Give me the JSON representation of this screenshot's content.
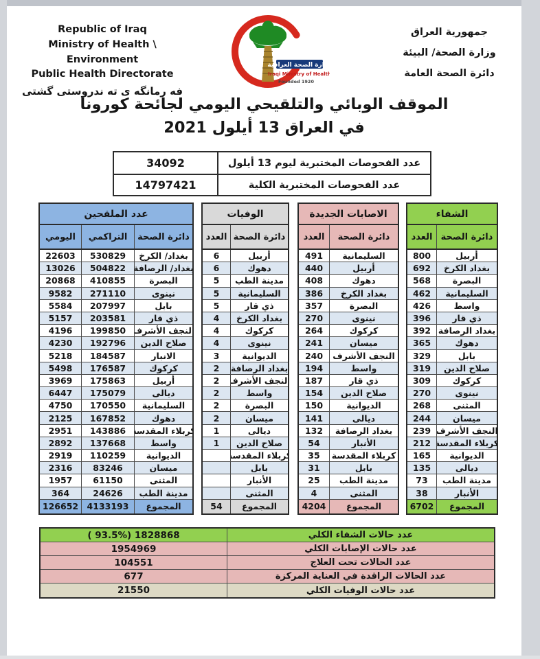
{
  "colors": {
    "blue": "#8DB4E2",
    "gray": "#D9D9D9",
    "pink": "#E6B8B7",
    "green": "#92D050",
    "stripe": "#DCE6F1",
    "beige": "#DDD9C4",
    "border": "#2b2b2b",
    "crescent_red": "#D6291E",
    "palm_green": "#1F8A24"
  },
  "header": {
    "english_lines": [
      "Republic of Iraq",
      "Ministry of Health \\ Environment",
      "Public Health Directorate"
    ],
    "kurdish_line": "فه رمانگه ی ته ندروستی گشتی",
    "arabic_lines": [
      "جمهورية العراق",
      "وزارة الصحة/ البيئة",
      "دائرة الصحة العامة"
    ],
    "logo": {
      "band_text": "وزارة الصحة العراقية",
      "sub_text": "Iraqi Ministry of Health",
      "founded_text": "Founded 1920"
    }
  },
  "title": {
    "line1": "الموقف الوبائي والتلقيحي اليومي لجائحة كورونا",
    "line2": "في العراق  13  أيلول 2021"
  },
  "tests": {
    "rows": [
      {
        "label": "عدد الفحوصات المختبرية  ليوم 13 أيلول",
        "value": "34092"
      },
      {
        "label": "عدد الفحوصات المختبرية الكلية",
        "value": "14797421"
      }
    ]
  },
  "main_tables": [
    {
      "id": "vaccinated",
      "title": "عدد الملقحين",
      "header_bg": "#8DB4E2",
      "headers": [
        "اليومي",
        "التراكمي",
        "دائرة الصحة"
      ],
      "rows": [
        [
          "22603",
          "530829",
          "بغداد/ الكرخ"
        ],
        [
          "13026",
          "504822",
          "بغداد/ الرصافة"
        ],
        [
          "20868",
          "410855",
          "البصرة"
        ],
        [
          "9582",
          "271110",
          "نينوى"
        ],
        [
          "5584",
          "207997",
          "بابل"
        ],
        [
          "5157",
          "203581",
          "ذي قار"
        ],
        [
          "4196",
          "199850",
          "النجف الأشرف"
        ],
        [
          "4230",
          "192796",
          "صلاح الدين"
        ],
        [
          "5218",
          "184587",
          "الانبار"
        ],
        [
          "5498",
          "176587",
          "كركوك"
        ],
        [
          "3969",
          "175863",
          "أربيل"
        ],
        [
          "6447",
          "175079",
          "ديالى"
        ],
        [
          "4750",
          "170550",
          "السليمانية"
        ],
        [
          "2125",
          "167852",
          "دهوك"
        ],
        [
          "2951",
          "143886",
          "كربلاء المقدسة"
        ],
        [
          "2892",
          "137668",
          "واسط"
        ],
        [
          "2919",
          "110259",
          "الديوانية"
        ],
        [
          "2316",
          "83246",
          "ميسان"
        ],
        [
          "1957",
          "61150",
          "المثنى"
        ],
        [
          "364",
          "24626",
          "مدينة الطب"
        ]
      ],
      "total": [
        "126652",
        "4133193",
        "المجموع"
      ]
    },
    {
      "id": "deaths",
      "title": "الوفيات",
      "header_bg": "#D9D9D9",
      "headers": [
        "العدد",
        "دائرة الصحة"
      ],
      "rows": [
        [
          "6",
          "أربيل"
        ],
        [
          "6",
          "دهوك"
        ],
        [
          "5",
          "مدينة الطب"
        ],
        [
          "5",
          "السليمانية"
        ],
        [
          "5",
          "ذي قار"
        ],
        [
          "4",
          "بغداد الكرخ"
        ],
        [
          "4",
          "كركوك"
        ],
        [
          "4",
          "نينوى"
        ],
        [
          "3",
          "الديوانية"
        ],
        [
          "2",
          "بغداد الرصافة"
        ],
        [
          "2",
          "النجف الأشرف"
        ],
        [
          "2",
          "واسط"
        ],
        [
          "2",
          "البصرة"
        ],
        [
          "2",
          "ميسان"
        ],
        [
          "1",
          "ديالى"
        ],
        [
          "1",
          "صلاح الدين"
        ],
        [
          "",
          "كربلاء المقدسة"
        ],
        [
          "",
          "بابل"
        ],
        [
          "",
          "الأنبار"
        ],
        [
          "",
          "المثنى"
        ]
      ],
      "total": [
        "54",
        "المجموع"
      ]
    },
    {
      "id": "infections",
      "title": "الاصابات الجديدة",
      "header_bg": "#E6B8B7",
      "headers": [
        "العدد",
        "دائرة الصحة"
      ],
      "rows": [
        [
          "491",
          "السليمانية"
        ],
        [
          "440",
          "أربيل"
        ],
        [
          "408",
          "دهوك"
        ],
        [
          "386",
          "بغداد الكرخ"
        ],
        [
          "357",
          "البصرة"
        ],
        [
          "270",
          "نينوى"
        ],
        [
          "264",
          "كركوك"
        ],
        [
          "241",
          "ميسان"
        ],
        [
          "240",
          "النجف الأشرف"
        ],
        [
          "194",
          "واسط"
        ],
        [
          "187",
          "ذي قار"
        ],
        [
          "154",
          "صلاح الدين"
        ],
        [
          "150",
          "الديوانية"
        ],
        [
          "141",
          "ديالى"
        ],
        [
          "132",
          "بغداد الرصافة"
        ],
        [
          "54",
          "الأنبار"
        ],
        [
          "35",
          "كربلاء المقدسة"
        ],
        [
          "31",
          "بابل"
        ],
        [
          "25",
          "مدينة الطب"
        ],
        [
          "4",
          "المثنى"
        ]
      ],
      "total": [
        "4204",
        "المجموع"
      ]
    },
    {
      "id": "recovery",
      "title": "الشفاء",
      "header_bg": "#92D050",
      "headers": [
        "العدد",
        "دائرة الصحة"
      ],
      "rows": [
        [
          "800",
          "أربيل"
        ],
        [
          "692",
          "بغداد الكرخ"
        ],
        [
          "568",
          "البصرة"
        ],
        [
          "462",
          "السليمانية"
        ],
        [
          "426",
          "واسط"
        ],
        [
          "396",
          "ذي قار"
        ],
        [
          "392",
          "بغداد الرصافة"
        ],
        [
          "365",
          "دهوك"
        ],
        [
          "329",
          "بابل"
        ],
        [
          "319",
          "صلاح الدين"
        ],
        [
          "309",
          "كركوك"
        ],
        [
          "270",
          "نينوى"
        ],
        [
          "268",
          "المثنى"
        ],
        [
          "244",
          "ميسان"
        ],
        [
          "239",
          "النجف الأشرف"
        ],
        [
          "212",
          "كربلاء المقدسة"
        ],
        [
          "165",
          "الديوانية"
        ],
        [
          "135",
          "ديالى"
        ],
        [
          "73",
          "مدينة الطب"
        ],
        [
          "38",
          "الأنبار"
        ]
      ],
      "total": [
        "6702",
        "المجموع"
      ]
    }
  ],
  "summary": {
    "rows": [
      {
        "label": "عدد حالات الشفاء الكلي",
        "value": "( 93.5%)  1828868",
        "bg": "#92D050"
      },
      {
        "label": "عدد حالات الإصابات الكلي",
        "value": "1954969",
        "bg": "#E6B8B7"
      },
      {
        "label": "عدد الحالات تحت العلاج",
        "value": "104551",
        "bg": "#E6B8B7"
      },
      {
        "label": "عدد الحالات الراقدة في العناية المركزة",
        "value": "677",
        "bg": "#E6B8B7"
      },
      {
        "label": "عدد حالات الوفيات الكلي",
        "value": "21550",
        "bg": "#DDD9C4"
      }
    ]
  }
}
